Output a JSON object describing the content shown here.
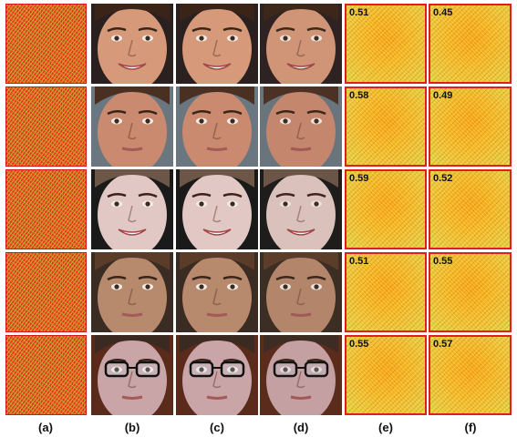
{
  "columns": [
    {
      "id": "a",
      "label": "(a)"
    },
    {
      "id": "b",
      "label": "(b)"
    },
    {
      "id": "c",
      "label": "(c)"
    },
    {
      "id": "d",
      "label": "(d)"
    },
    {
      "id": "e",
      "label": "(e)"
    },
    {
      "id": "f",
      "label": "(f)"
    }
  ],
  "rows": [
    {
      "skin": "#d69a7a",
      "hair": "#3a2418",
      "bg": "#2a2020",
      "expression": "smile",
      "e_score": "0.51",
      "f_score": "0.45"
    },
    {
      "skin": "#c98a70",
      "hair": "#4a3022",
      "bg": "#6a7680",
      "expression": "neutral",
      "e_score": "0.58",
      "f_score": "0.49"
    },
    {
      "skin": "#e2c8c4",
      "hair": "#6b5648",
      "bg": "#1a1a1a",
      "expression": "smile",
      "e_score": "0.59",
      "f_score": "0.52"
    },
    {
      "skin": "#b78a6e",
      "hair": "#5a3c28",
      "bg": "#3a2c22",
      "expression": "neutral",
      "e_score": "0.51",
      "f_score": "0.55"
    },
    {
      "skin": "#c9a5a8",
      "hair": "#3a2a22",
      "bg": "#5a2a1a",
      "expression": "glasses",
      "e_score": "0.55",
      "f_score": "0.57"
    }
  ],
  "colors": {
    "border": "#e01e1e",
    "heat_hot": "#f7a51c",
    "heat_cool": "#7fd24a",
    "noise_red": "#e44423"
  }
}
